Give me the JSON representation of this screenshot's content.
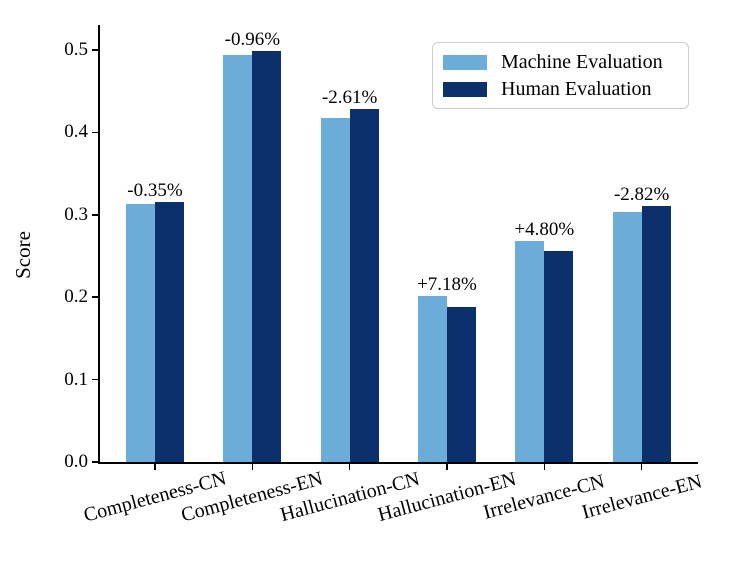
{
  "chart_data": {
    "type": "bar",
    "title": "",
    "xlabel": "",
    "ylabel": "Score",
    "ylim": [
      0,
      0.52
    ],
    "yticks": [
      0.0,
      0.1,
      0.2,
      0.3,
      0.4,
      0.5
    ],
    "grid": false,
    "legend_position": "upper right",
    "categories": [
      "Completeness-CN",
      "Completeness-EN",
      "Hallucination-CN",
      "Hallucination-EN",
      "Irrelevance-CN",
      "Irrelevance-EN"
    ],
    "series": [
      {
        "name": "Machine Evaluation",
        "color": "#6CACD8",
        "values": [
          0.313,
          0.494,
          0.417,
          0.202,
          0.268,
          0.303
        ]
      },
      {
        "name": "Human Evaluation",
        "color": "#0B306B",
        "values": [
          0.315,
          0.499,
          0.428,
          0.188,
          0.256,
          0.311
        ]
      }
    ],
    "annotations": [
      "-0.35%",
      "-0.96%",
      "-2.61%",
      "+7.18%",
      "+4.80%",
      "-2.82%"
    ]
  },
  "colors": {
    "axis": "#000000",
    "background": "#ffffff",
    "legend_border": "#cccccc"
  }
}
